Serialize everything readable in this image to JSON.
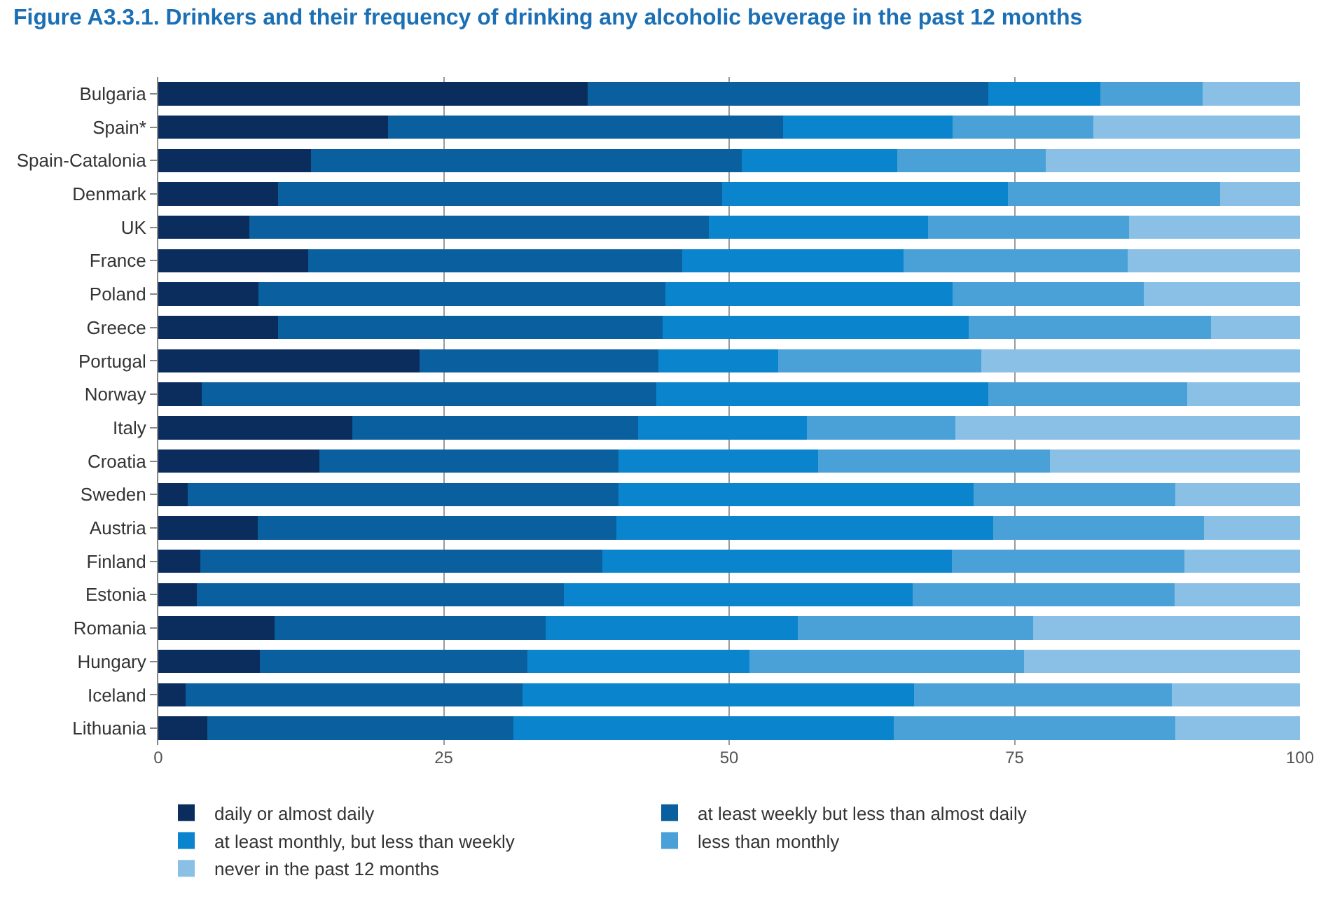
{
  "chart_data": {
    "type": "bar",
    "orientation": "horizontal",
    "stacked": true,
    "title": "Figure A3.3.1. Drinkers and their frequency of drinking any alcoholic beverage in the past 12 months",
    "categories": [
      "Bulgaria",
      "Spain*",
      "Spain-Catalonia",
      "Denmark",
      "UK",
      "France",
      "Poland",
      "Greece",
      "Portugal",
      "Norway",
      "Italy",
      "Croatia",
      "Sweden",
      "Austria",
      "Finland",
      "Estonia",
      "Romania",
      "Hungary",
      "Iceland",
      "Lithuania"
    ],
    "series": [
      {
        "name": "daily or almost daily",
        "color": "#0b2d5e",
        "values": [
          37.6,
          20.1,
          13.4,
          10.5,
          8.0,
          13.1,
          8.8,
          10.5,
          22.9,
          3.8,
          17.0,
          14.1,
          2.6,
          8.7,
          3.7,
          3.4,
          10.2,
          8.9,
          2.4,
          4.3
        ]
      },
      {
        "name": "at least weekly but less than almost daily",
        "color": "#0a5f9e",
        "values": [
          35.1,
          34.6,
          37.7,
          38.9,
          40.2,
          32.8,
          35.6,
          33.7,
          20.9,
          39.8,
          25.0,
          26.2,
          37.7,
          31.4,
          35.2,
          32.1,
          23.7,
          23.4,
          29.5,
          26.8
        ]
      },
      {
        "name": "at least monthly, but less than weekly",
        "color": "#0a84cc",
        "values": [
          9.8,
          14.9,
          13.6,
          25.0,
          19.2,
          19.4,
          25.2,
          26.8,
          10.5,
          29.1,
          14.8,
          17.5,
          31.1,
          33.0,
          30.6,
          30.6,
          22.1,
          19.5,
          34.3,
          33.3
        ]
      },
      {
        "name": "less than monthly",
        "color": "#4aa1d8",
        "values": [
          9.0,
          12.3,
          13.0,
          18.6,
          17.6,
          19.6,
          16.7,
          21.2,
          17.8,
          17.4,
          13.0,
          20.3,
          17.7,
          18.5,
          20.4,
          22.9,
          20.6,
          24.0,
          22.6,
          24.7
        ]
      },
      {
        "name": "never in the past 12 months",
        "color": "#8ac0e6",
        "values": [
          8.5,
          18.1,
          22.3,
          7.0,
          15.0,
          15.1,
          13.7,
          7.8,
          27.9,
          9.9,
          30.2,
          21.9,
          10.9,
          8.4,
          10.1,
          11.0,
          23.4,
          24.2,
          11.2,
          10.9
        ]
      }
    ],
    "xlim": [
      0,
      100
    ],
    "xticks": [
      0,
      25,
      50,
      75,
      100
    ],
    "grid": "x",
    "legend": "bottom"
  }
}
